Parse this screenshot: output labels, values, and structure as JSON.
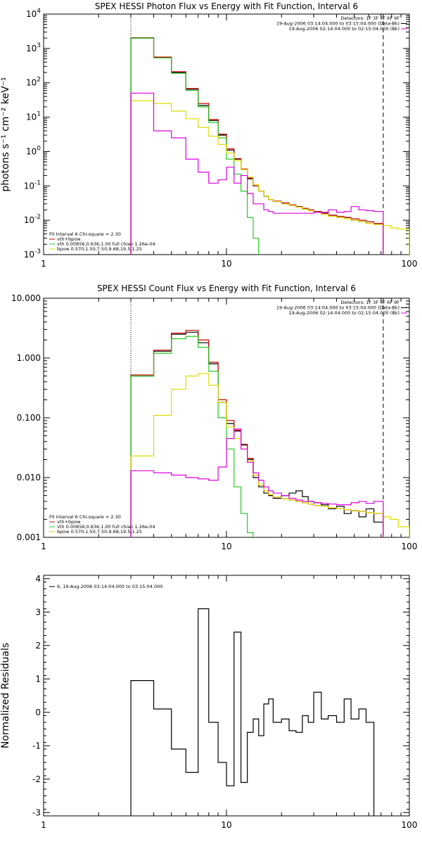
{
  "chart_data": [
    {
      "type": "line",
      "title": "SPEX HESSI Photon Flux vs Energy with Fit Function, Interval 6",
      "xlabel": "",
      "ylabel": "photons s⁻¹ cm⁻² keV⁻¹",
      "xscale": "log",
      "yscale": "log",
      "xlim": [
        1,
        100
      ],
      "ylim": [
        0.001,
        10000
      ],
      "xticks": [
        1,
        10,
        100
      ],
      "xtick_labels": [
        "1",
        "10",
        "100"
      ],
      "yticks": [
        0.001,
        0.01,
        0.1,
        1,
        10,
        100,
        1000,
        10000
      ],
      "ytick_labels": [
        {
          "base": "10",
          "exp": "-3"
        },
        {
          "base": "10",
          "exp": "-2"
        },
        {
          "base": "10",
          "exp": "-1"
        },
        {
          "base": "10",
          "exp": "0"
        },
        {
          "base": "10",
          "exp": "1"
        },
        {
          "base": "10",
          "exp": "2"
        },
        {
          "base": "10",
          "exp": "3"
        },
        {
          "base": "10",
          "exp": "4"
        }
      ],
      "vlines": [
        {
          "x": 3,
          "style": "dotted"
        },
        {
          "x": 72,
          "style": "dashed"
        }
      ],
      "edges": [
        3,
        4,
        5,
        6,
        7,
        8,
        9,
        10,
        11,
        12,
        13,
        14,
        15,
        16,
        17,
        18,
        20,
        22,
        24,
        26,
        28,
        30,
        33,
        36,
        40,
        44,
        48,
        53,
        58,
        64,
        72,
        79,
        87,
        100
      ],
      "series": [
        {
          "name": "",
          "color": "#000000",
          "values": [
            2000,
            550,
            200,
            65,
            22,
            8,
            3,
            1.1,
            0.6,
            0.3,
            0.16,
            0.1,
            0.07,
            0.05,
            0.04,
            0.035,
            0.03,
            0.028,
            0.025,
            0.022,
            0.02,
            0.018,
            0.016,
            0.014,
            0.012,
            0.012,
            0.01,
            0.009,
            0.008,
            0.008
          ]
        },
        {
          "name": "vth+bpow",
          "color": "#cc0000",
          "values": [
            2050,
            560,
            210,
            68,
            25,
            8.5,
            3.2,
            1.2,
            0.62,
            0.31,
            0.17,
            0.1,
            0.07,
            0.05,
            0.04,
            0.036,
            0.032,
            0.028,
            0.025,
            0.022,
            0.02,
            0.018,
            0.016,
            0.014,
            0.013,
            0.012,
            0.011,
            0.01,
            0.009,
            0.008
          ]
        },
        {
          "name": "vth",
          "color": "#22cc22",
          "values": [
            2000,
            530,
            190,
            60,
            20,
            7,
            2.5,
            0.6,
            0.22,
            0.07,
            0.012,
            0.003
          ]
        },
        {
          "name": "bpow",
          "color": "#dddd00",
          "values": [
            30,
            25,
            15,
            9,
            5,
            2.8,
            1.6,
            0.9,
            0.55,
            0.3,
            0.18,
            0.11,
            0.07,
            0.05,
            0.04,
            0.035,
            0.03,
            0.027,
            0.024,
            0.021,
            0.019,
            0.017,
            0.015,
            0.013,
            0.012,
            0.011,
            0.01,
            0.009,
            0.008,
            0.0075,
            0.007,
            0.006,
            0.0055
          ]
        },
        {
          "name": "",
          "color": "#dd00dd",
          "values": [
            50,
            4,
            2.5,
            0.6,
            0.25,
            0.12,
            0.15,
            0.35,
            0.12,
            0.2,
            0.06,
            0.03,
            0.03,
            0.02,
            0.018,
            0.016,
            0.016,
            0.016,
            0.016,
            0.016,
            0.016,
            0.017,
            0.017,
            0.02,
            0.017,
            0.018,
            0.025,
            0.02,
            0.019,
            0.018
          ]
        }
      ],
      "header_lines": [
        {
          "text": "Detectors: 1F 3F 4F 6F 9F",
          "color": ""
        },
        {
          "text": "19-Aug-2006 03:14:04.000 to 03:15:04.000 (Data-Bk)",
          "color": "#000000"
        },
        {
          "text": "19-Aug-2006 02:14:04.000 to 02:15:04.000 (Bk)",
          "color": "#dd00dd"
        }
      ],
      "legend": {
        "position": "bottom-left",
        "title": "Fit Interval 6   Chi-square = 2.30",
        "items": [
          {
            "text": "vth+bpow",
            "color": "#cc0000"
          },
          {
            "text": "vth 0.00856,0.636,1.00  full chian 1.26e-04",
            "color": "#22cc22"
          },
          {
            "text": "bpow 0.570,1.50,7.50,9.68,19.5,1.25",
            "color": "#dddd00"
          }
        ]
      }
    },
    {
      "type": "line",
      "title": "SPEX HESSI Count Flux vs Energy with Fit Function, Interval 6",
      "xlabel": "",
      "ylabel": "",
      "xscale": "log",
      "yscale": "log",
      "xlim": [
        1,
        100
      ],
      "ylim": [
        0.001,
        10
      ],
      "xticks": [
        1,
        10,
        100
      ],
      "xtick_labels": [
        "1",
        "10",
        "100"
      ],
      "yticks": [
        0.001,
        0.01,
        0.1,
        1,
        10
      ],
      "ytick_labels": [
        "0.001",
        "0.010",
        "0.100",
        "1.000",
        "10.000"
      ],
      "vlines": [
        {
          "x": 3,
          "style": "dotted"
        },
        {
          "x": 72,
          "style": "dashed"
        }
      ],
      "edges": [
        3,
        4,
        5,
        6,
        7,
        8,
        9,
        10,
        11,
        12,
        13,
        14,
        15,
        16,
        17,
        18,
        20,
        22,
        24,
        26,
        28,
        30,
        33,
        36,
        40,
        44,
        48,
        53,
        58,
        64,
        72,
        79,
        87,
        100
      ],
      "series": [
        {
          "name": "",
          "color": "#000000",
          "values": [
            0.5,
            1.3,
            2.5,
            2.7,
            1.8,
            0.8,
            0.18,
            0.08,
            0.06,
            0.035,
            0.02,
            0.01,
            0.007,
            0.0055,
            0.005,
            0.0045,
            0.005,
            0.0055,
            0.006,
            0.0048,
            0.004,
            0.0038,
            0.0035,
            0.003,
            0.0033,
            0.0025,
            0.0028,
            0.0022,
            0.003,
            0.0018
          ]
        },
        {
          "name": "vth+bpow",
          "color": "#cc0000",
          "values": [
            0.52,
            1.35,
            2.6,
            2.9,
            2.0,
            0.85,
            0.2,
            0.09,
            0.062,
            0.036,
            0.021,
            0.011,
            0.0075,
            0.006,
            0.0052,
            0.0047,
            0.0044,
            0.0042,
            0.004,
            0.0038,
            0.0036,
            0.0034,
            0.0033,
            0.0031,
            0.003,
            0.0029,
            0.0028,
            0.0027,
            0.0026,
            0.0025
          ]
        },
        {
          "name": "vth",
          "color": "#22cc22",
          "values": [
            0.5,
            1.2,
            2.1,
            2.3,
            1.5,
            0.6,
            0.1,
            0.03,
            0.007,
            0.0025,
            0.0012
          ]
        },
        {
          "name": "bpow",
          "color": "#dddd00",
          "values": [
            0.023,
            0.11,
            0.3,
            0.5,
            0.55,
            0.35,
            0.18,
            0.07,
            0.045,
            0.03,
            0.019,
            0.011,
            0.0075,
            0.006,
            0.0052,
            0.0047,
            0.0044,
            0.0042,
            0.004,
            0.0038,
            0.0036,
            0.0034,
            0.0033,
            0.0031,
            0.003,
            0.0029,
            0.0028,
            0.0027,
            0.0026,
            0.0025,
            0.0022,
            0.002,
            0.0015
          ]
        },
        {
          "name": "",
          "color": "#dd00dd",
          "values": [
            0.013,
            0.012,
            0.011,
            0.01,
            0.0095,
            0.009,
            0.015,
            0.045,
            0.065,
            0.03,
            0.018,
            0.012,
            0.009,
            0.007,
            0.006,
            0.0055,
            0.005,
            0.0045,
            0.0042,
            0.004,
            0.004,
            0.0038,
            0.0037,
            0.0036,
            0.0035,
            0.0035,
            0.0038,
            0.004,
            0.0037,
            0.004
          ]
        }
      ],
      "header_lines": [
        {
          "text": "Detectors: 1F 3F 4F 6F 9F",
          "color": ""
        },
        {
          "text": "19-Aug-2006 03:14:04.000 to 03:15:04.000 (Data-Bk)",
          "color": "#000000"
        },
        {
          "text": "19-Aug-2006 02:14:04.000 to 02:15:04.000 (Bk)",
          "color": "#dd00dd"
        }
      ],
      "legend": {
        "position": "bottom-left",
        "title": "Fit Interval 6   Chi-square = 2.30",
        "items": [
          {
            "text": "vth+bpow",
            "color": "#cc0000"
          },
          {
            "text": "vth 0.00856,0.636,1.00  full chian 1.26e-04",
            "color": "#22cc22"
          },
          {
            "text": "bpow 0.570,1.50,7.50,9.68,19.5,1.25",
            "color": "#dddd00"
          }
        ]
      }
    },
    {
      "type": "line",
      "title": "",
      "xlabel": "",
      "ylabel": "Normalized Residuals",
      "xscale": "log",
      "yscale": "linear",
      "xlim": [
        1,
        100
      ],
      "ylim": [
        -3.1,
        4.1
      ],
      "xticks": [
        1,
        10,
        100
      ],
      "xtick_labels": [
        "1",
        "10",
        "100"
      ],
      "yticks": [
        -3,
        -2,
        -1,
        0,
        1,
        2,
        3,
        4
      ],
      "ytick_labels": [
        "-3",
        "-2",
        "-1",
        "0",
        "1",
        "2",
        "3",
        "4"
      ],
      "vlines": [],
      "edges": [
        3,
        4,
        5,
        6,
        7,
        8,
        9,
        10,
        11,
        12,
        13,
        14,
        15,
        16,
        17,
        18,
        20,
        22,
        24,
        26,
        28,
        30,
        33,
        36,
        40,
        44,
        48,
        53,
        58,
        64,
        72
      ],
      "series": [
        {
          "name": "6, 19-Aug-2006 03:14:04.000 to 03:15:04.000",
          "color": "#000000",
          "values": [
            0.95,
            0.1,
            -1.1,
            -1.8,
            3.1,
            -0.3,
            -1.5,
            -2.2,
            2.4,
            -2.1,
            -0.6,
            -0.2,
            -0.7,
            0.25,
            0.4,
            -0.3,
            -0.2,
            -0.55,
            -0.6,
            -0.1,
            -0.3,
            0.6,
            -0.2,
            -0.1,
            -0.3,
            0.4,
            -0.2,
            0.1,
            -0.3
          ]
        }
      ],
      "legend": {
        "position": "top-left",
        "items": [
          {
            "text": "6, 19-Aug-2006 03:14:04.000 to 03:15:04.000",
            "color": "#000000"
          }
        ]
      }
    }
  ]
}
